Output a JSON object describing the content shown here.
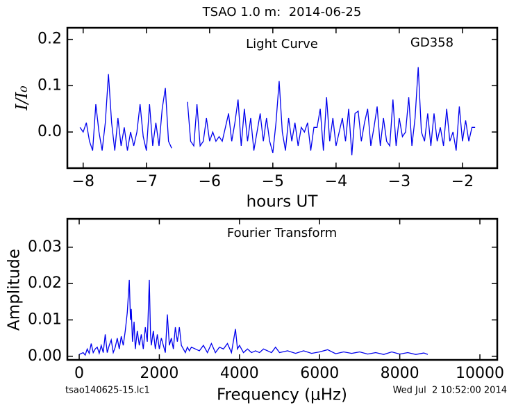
{
  "title": "TSAO 1.0 m:  2014-06-25",
  "footer": {
    "left": "tsao140625-15.lc1",
    "right": "Wed Jul  2 10:52:00 2014"
  },
  "chart_data": [
    {
      "type": "line",
      "annotations": [
        "Light Curve",
        "GD358"
      ],
      "xlabel": "hours UT",
      "ylabel": "I/I₀",
      "color": "#0000ee",
      "xlim": [
        -8.25,
        -1.45
      ],
      "ylim": [
        -0.078,
        0.225
      ],
      "xticks": [
        {
          "value": -8,
          "label": "−8"
        },
        {
          "value": -7,
          "label": "−7"
        },
        {
          "value": -6,
          "label": "−6"
        },
        {
          "value": -5,
          "label": "−5"
        },
        {
          "value": -4,
          "label": "−4"
        },
        {
          "value": -3,
          "label": "−3"
        },
        {
          "value": -2,
          "label": "−2"
        }
      ],
      "yticks": [
        {
          "value": 0,
          "label": "0.0"
        },
        0.1,
        0.2
      ],
      "x": [
        -8.05,
        -8.0,
        -7.95,
        -7.9,
        -7.85,
        -7.8,
        -7.75,
        -7.7,
        -7.65,
        -7.6,
        -7.55,
        -7.5,
        -7.45,
        -7.4,
        -7.35,
        -7.3,
        -7.25,
        -7.2,
        -7.15,
        -7.1,
        -7.05,
        -7.0,
        -6.95,
        -6.9,
        -6.85,
        -6.8,
        -6.75,
        -6.7,
        -6.65,
        -6.6,
        -6.47,
        -6.35,
        -6.3,
        -6.25,
        -6.2,
        -6.15,
        -6.1,
        -6.05,
        -6.0,
        -5.95,
        -5.9,
        -5.85,
        -5.8,
        -5.75,
        -5.7,
        -5.65,
        -5.6,
        -5.55,
        -5.5,
        -5.45,
        -5.4,
        -5.35,
        -5.3,
        -5.25,
        -5.2,
        -5.15,
        -5.1,
        -5.05,
        -5.0,
        -4.95,
        -4.9,
        -4.85,
        -4.8,
        -4.75,
        -4.7,
        -4.65,
        -4.6,
        -4.55,
        -4.5,
        -4.45,
        -4.4,
        -4.35,
        -4.3,
        -4.25,
        -4.2,
        -4.15,
        -4.1,
        -4.05,
        -4.0,
        -3.95,
        -3.9,
        -3.85,
        -3.8,
        -3.75,
        -3.7,
        -3.65,
        -3.6,
        -3.55,
        -3.5,
        -3.45,
        -3.4,
        -3.35,
        -3.3,
        -3.25,
        -3.2,
        -3.15,
        -3.1,
        -3.05,
        -3.0,
        -2.95,
        -2.9,
        -2.85,
        -2.8,
        -2.75,
        -2.7,
        -2.65,
        -2.6,
        -2.55,
        -2.5,
        -2.45,
        -2.4,
        -2.35,
        -2.3,
        -2.25,
        -2.2,
        -2.15,
        -2.1,
        -2.05,
        -2.0,
        -1.95,
        -1.9,
        -1.85,
        -1.8
      ],
      "values": [
        0.01,
        0.0,
        0.02,
        -0.02,
        -0.04,
        0.06,
        0.0,
        -0.04,
        0.02,
        0.125,
        0.02,
        -0.04,
        0.03,
        -0.03,
        0.01,
        -0.04,
        0.0,
        -0.03,
        0.0,
        0.06,
        -0.01,
        -0.04,
        0.06,
        -0.03,
        0.02,
        -0.03,
        0.05,
        0.095,
        -0.02,
        -0.035,
        null,
        0.065,
        -0.02,
        -0.03,
        0.06,
        -0.03,
        -0.02,
        0.03,
        -0.02,
        0.0,
        -0.02,
        -0.01,
        -0.02,
        0.01,
        0.04,
        -0.02,
        0.02,
        0.07,
        -0.03,
        0.05,
        -0.02,
        0.03,
        -0.04,
        0.0,
        0.04,
        -0.02,
        0.03,
        -0.02,
        -0.045,
        0.02,
        0.11,
        0.0,
        -0.04,
        0.03,
        -0.02,
        0.02,
        -0.03,
        0.01,
        0.0,
        0.02,
        -0.04,
        0.01,
        0.01,
        0.05,
        -0.04,
        0.075,
        -0.02,
        0.03,
        -0.03,
        0.0,
        0.03,
        -0.02,
        0.05,
        -0.05,
        0.04,
        0.045,
        -0.02,
        0.02,
        0.05,
        -0.03,
        0.01,
        0.055,
        -0.03,
        0.03,
        -0.02,
        -0.03,
        0.07,
        -0.03,
        0.03,
        -0.01,
        0.0,
        0.075,
        -0.03,
        0.03,
        0.14,
        0.0,
        -0.02,
        0.04,
        -0.03,
        0.04,
        -0.02,
        0.01,
        -0.03,
        0.05,
        -0.02,
        0.0,
        -0.04,
        0.055,
        -0.02,
        0.025,
        -0.02,
        0.01,
        0.01
      ]
    },
    {
      "type": "line",
      "annotations": [
        "Fourier Transform"
      ],
      "xlabel": "Frequency (μHz)",
      "ylabel": "Amplitude",
      "color": "#0000ee",
      "xlim": [
        -295,
        10433
      ],
      "ylim": [
        -0.001,
        0.0378
      ],
      "xticks": [
        0,
        2000,
        4000,
        6000,
        8000,
        10000
      ],
      "yticks": [
        {
          "value": 0,
          "label": "0.00"
        },
        {
          "value": 0.01,
          "label": "0.01"
        },
        {
          "value": 0.02,
          "label": "0.02"
        },
        {
          "value": 0.03,
          "label": "0.03"
        }
      ],
      "x": [
        0,
        100,
        150,
        200,
        250,
        300,
        350,
        400,
        450,
        500,
        550,
        600,
        650,
        700,
        750,
        800,
        850,
        900,
        950,
        1000,
        1050,
        1100,
        1150,
        1200,
        1250,
        1280,
        1300,
        1330,
        1370,
        1400,
        1450,
        1500,
        1550,
        1600,
        1650,
        1700,
        1750,
        1780,
        1800,
        1850,
        1900,
        1950,
        2000,
        2050,
        2100,
        2150,
        2200,
        2250,
        2300,
        2350,
        2400,
        2450,
        2500,
        2550,
        2600,
        2650,
        2700,
        2750,
        2800,
        2900,
        3000,
        3100,
        3200,
        3300,
        3400,
        3500,
        3600,
        3700,
        3800,
        3900,
        3950,
        4000,
        4100,
        4200,
        4300,
        4400,
        4500,
        4600,
        4700,
        4800,
        4900,
        5000,
        5200,
        5400,
        5600,
        5800,
        6000,
        6200,
        6400,
        6600,
        6800,
        7000,
        7200,
        7400,
        7600,
        7800,
        8000,
        8200,
        8400,
        8600,
        8700
      ],
      "values": [
        0.0005,
        0.001,
        0.0003,
        0.002,
        0.0008,
        0.0035,
        0.001,
        0.002,
        0.0025,
        0.0008,
        0.003,
        0.001,
        0.006,
        0.001,
        0.003,
        0.0045,
        0.001,
        0.0025,
        0.005,
        0.002,
        0.0055,
        0.003,
        0.007,
        0.012,
        0.021,
        0.01,
        0.013,
        0.004,
        0.0095,
        0.002,
        0.007,
        0.003,
        0.006,
        0.002,
        0.008,
        0.004,
        0.021,
        0.006,
        0.003,
        0.007,
        0.002,
        0.006,
        0.002,
        0.005,
        0.003,
        0.001,
        0.0115,
        0.003,
        0.005,
        0.002,
        0.008,
        0.004,
        0.008,
        0.003,
        0.002,
        0.001,
        0.0025,
        0.0015,
        0.0025,
        0.002,
        0.0015,
        0.003,
        0.001,
        0.0035,
        0.001,
        0.0025,
        0.002,
        0.0035,
        0.001,
        0.0075,
        0.002,
        0.003,
        0.001,
        0.002,
        0.001,
        0.0015,
        0.001,
        0.002,
        0.0015,
        0.001,
        0.0025,
        0.001,
        0.0015,
        0.0008,
        0.0015,
        0.0008,
        0.0012,
        0.0018,
        0.0007,
        0.0012,
        0.0008,
        0.0012,
        0.0006,
        0.001,
        0.0005,
        0.0012,
        0.0006,
        0.001,
        0.0005,
        0.0009,
        0.0005
      ]
    }
  ]
}
